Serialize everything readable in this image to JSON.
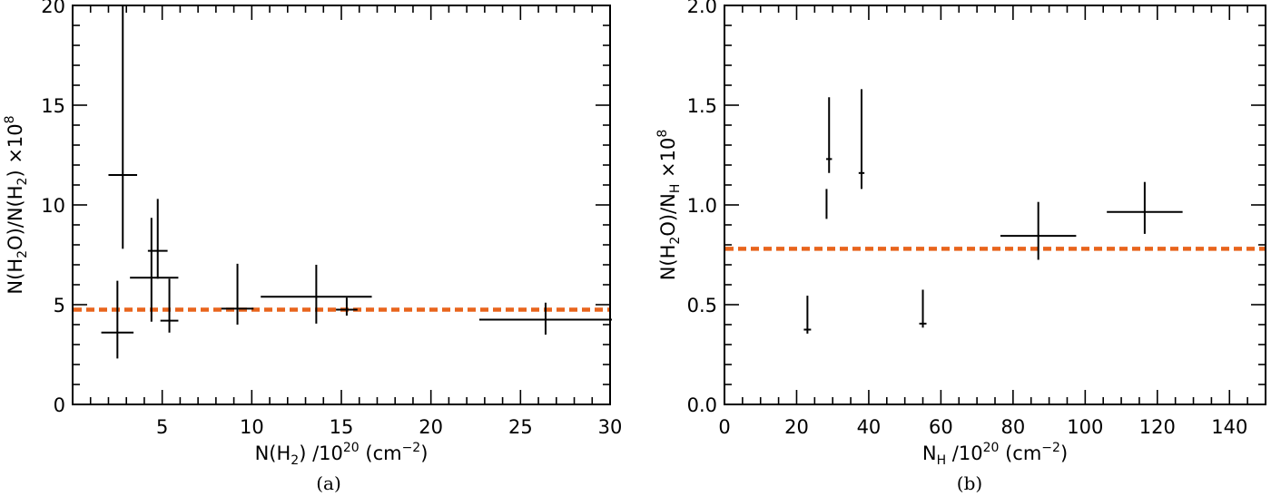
{
  "figure": {
    "panels": [
      {
        "id": "a",
        "caption": "(a)"
      },
      {
        "id": "b",
        "caption": "(b)"
      }
    ]
  },
  "chart_data": [
    {
      "type": "scatter",
      "caption": "(a)",
      "xlabel": {
        "pre": "N(H",
        "sub": "2",
        "mid": ") /10",
        "sup": "20",
        "post": " (cm",
        "sup2": "−2",
        "end": ")"
      },
      "ylabel": {
        "pre": "N(H",
        "sub1": "2",
        "mid1": "O)/N(H",
        "sub2": "2",
        "mid2": ") ×10",
        "sup": "8"
      },
      "xlim": [
        0,
        30
      ],
      "ylim": [
        0,
        20
      ],
      "xticks": [
        5,
        10,
        15,
        20,
        25,
        30
      ],
      "yticks": [
        0,
        5,
        10,
        15,
        20
      ],
      "xminor": 1,
      "yminor": 1,
      "reference_line": {
        "y": 4.75,
        "color": "#e8641c",
        "style": "dashed"
      },
      "series": [
        {
          "marker": "error-cross",
          "color": "#000000",
          "points": [
            {
              "x": 2.5,
              "y": 3.6,
              "xerr": [
                0.9,
                0.9
              ],
              "yerr": [
                1.3,
                2.6
              ]
            },
            {
              "x": 2.8,
              "y": 11.5,
              "xerr": [
                0.8,
                0.8
              ],
              "yerr": [
                3.7,
                8.5
              ]
            },
            {
              "x": 4.4,
              "y": 6.35,
              "xerr": [
                1.2,
                1.5
              ],
              "yerr": [
                2.2,
                3.0
              ]
            },
            {
              "x": 4.75,
              "y": 7.7,
              "xerr": [
                0.55,
                0.55
              ],
              "yerr": [
                1.4,
                2.6
              ]
            },
            {
              "x": 5.4,
              "y": 4.2,
              "xerr": [
                0.5,
                0.5
              ],
              "yerr": [
                0.6,
                2.1
              ]
            },
            {
              "x": 9.2,
              "y": 4.8,
              "xerr": [
                0.9,
                0.9
              ],
              "yerr": [
                0.8,
                2.25
              ]
            },
            {
              "x": 13.6,
              "y": 5.4,
              "xerr": [
                3.1,
                3.1
              ],
              "yerr": [
                1.35,
                1.6
              ]
            },
            {
              "x": 15.3,
              "y": 4.75,
              "xerr": [
                0.6,
                0.6
              ],
              "yerr": [
                0.3,
                0.6
              ]
            },
            {
              "x": 26.4,
              "y": 4.25,
              "xerr": [
                3.7,
                3.7
              ],
              "yerr": [
                0.75,
                0.85
              ]
            }
          ]
        }
      ]
    },
    {
      "type": "scatter",
      "caption": "(b)",
      "xlabel": {
        "pre": "N",
        "sub": "H",
        "mid": " /10",
        "sup": "20",
        "post": " (cm",
        "sup2": "−2",
        "end": ")"
      },
      "ylabel": {
        "pre": "N(H",
        "sub1": "2",
        "mid1": "O)/N",
        "sub2": "H",
        "mid2": " ×10",
        "sup": "8"
      },
      "xlim": [
        0,
        150
      ],
      "ylim": [
        0.0,
        2.0
      ],
      "xticks": [
        0,
        20,
        40,
        60,
        80,
        100,
        120,
        140
      ],
      "yticks": [
        0.0,
        0.5,
        1.0,
        1.5,
        2.0
      ],
      "xminor": 5,
      "yminor": 0.1,
      "reference_line": {
        "y": 0.78,
        "color": "#e8641c",
        "style": "dashed"
      },
      "series": [
        {
          "marker": "error-cross",
          "color": "#000000",
          "points": [
            {
              "x": 23.0,
              "y": 0.375,
              "xerr": [
                1.0,
                1.0
              ],
              "yerr": [
                0.02,
                0.17
              ]
            },
            {
              "x": 29.0,
              "y": 1.23,
              "xerr": [
                0.8,
                0.8
              ],
              "yerr": [
                0.07,
                0.31
              ]
            },
            {
              "x": 28.3,
              "y": 1.08,
              "xerr": [
                0,
                0
              ],
              "yerr": [
                0.15,
                0.0
              ]
            },
            {
              "x": 38.0,
              "y": 1.16,
              "xerr": [
                0.8,
                0.8
              ],
              "yerr": [
                0.08,
                0.42
              ]
            },
            {
              "x": 55.0,
              "y": 0.405,
              "xerr": [
                1.0,
                1.0
              ],
              "yerr": [
                0.02,
                0.17
              ]
            },
            {
              "x": 87.0,
              "y": 0.845,
              "xerr": [
                10.5,
                10.5
              ],
              "yerr": [
                0.12,
                0.17
              ]
            },
            {
              "x": 116.5,
              "y": 0.965,
              "xerr": [
                10.5,
                10.5
              ],
              "yerr": [
                0.11,
                0.15
              ]
            }
          ]
        }
      ]
    }
  ]
}
